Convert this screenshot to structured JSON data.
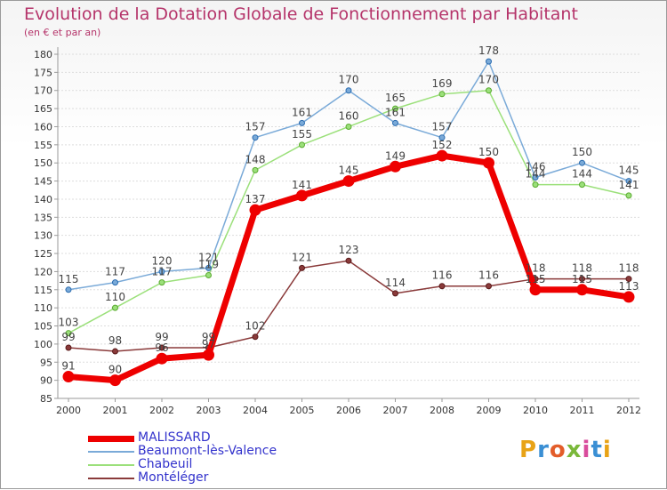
{
  "title": "Evolution de la Dotation Globale de Fonctionnement par Habitant",
  "subtitle": "(en € et par an)",
  "logo": {
    "text": "Proxiti",
    "colors": [
      "#e8a317",
      "#3a8fd4",
      "#e35d2a",
      "#7ab83a",
      "#d94c9c",
      "#3a8fd4",
      "#e8a317"
    ]
  },
  "colors": {
    "title": "#b5346a",
    "axis": "#9a9a9a",
    "grid": "#dddddd",
    "tick_text": "#333333",
    "label_text": "#444444",
    "legend_text": "#3333cc"
  },
  "chart_data": {
    "type": "line",
    "title": "Evolution de la Dotation Globale de Fonctionnement par Habitant",
    "ylabel": "(en € et par an)",
    "xlabel": "",
    "x": [
      "2000",
      "2001",
      "2002",
      "2003",
      "2004",
      "2005",
      "2006",
      "2007",
      "2008",
      "2009",
      "2010",
      "2011",
      "2012"
    ],
    "ylim": [
      85,
      180
    ],
    "yticks": [
      "85",
      "90",
      "95",
      "100",
      "105",
      "110",
      "115",
      "120",
      "125",
      "130",
      "135",
      "140",
      "145",
      "150",
      "155",
      "160",
      "165",
      "170",
      "175",
      "180"
    ],
    "grid": "horizontal",
    "legend_position": "bottom-left",
    "series": [
      {
        "name": "MALISSARD",
        "color": "#ee0000",
        "marker_stroke": "#ee0000",
        "bold": true,
        "values": [
          91,
          90,
          96,
          97,
          137,
          141,
          145,
          149,
          152,
          150,
          115,
          115,
          113
        ],
        "labels": [
          "91",
          "90",
          "96",
          "97",
          "137",
          "141",
          "145",
          "149",
          "152",
          "150",
          "115",
          "115",
          "113"
        ]
      },
      {
        "name": "Beaumont-lès-Valence",
        "color": "#7aaad8",
        "marker_stroke": "#2b6cb0",
        "bold": false,
        "values": [
          115,
          117,
          120,
          121,
          157,
          161,
          170,
          161,
          157,
          178,
          146,
          150,
          145
        ],
        "labels": [
          "115",
          "117",
          "120",
          "121",
          "157",
          "161",
          "170",
          "161",
          "157",
          "178",
          "146",
          "150",
          "145"
        ]
      },
      {
        "name": "Chabeuil",
        "color": "#9be07a",
        "marker_stroke": "#5aaa30",
        "bold": false,
        "values": [
          103,
          110,
          117,
          119,
          148,
          155,
          160,
          165,
          169,
          170,
          144,
          144,
          141
        ],
        "labels": [
          "103",
          "110",
          "117",
          "119",
          "148",
          "155",
          "160",
          "165",
          "169",
          "170",
          "144",
          "144",
          "141"
        ]
      },
      {
        "name": "Montéléger",
        "color": "#8a3a3a",
        "marker_stroke": "#5a1a1a",
        "bold": false,
        "values": [
          99,
          98,
          99,
          99,
          102,
          121,
          123,
          114,
          116,
          116,
          118,
          118,
          118
        ],
        "labels": [
          "99",
          "98",
          "99",
          "99",
          "102",
          "121",
          "123",
          "114",
          "116",
          "116",
          "118",
          "118",
          "118"
        ]
      }
    ]
  }
}
